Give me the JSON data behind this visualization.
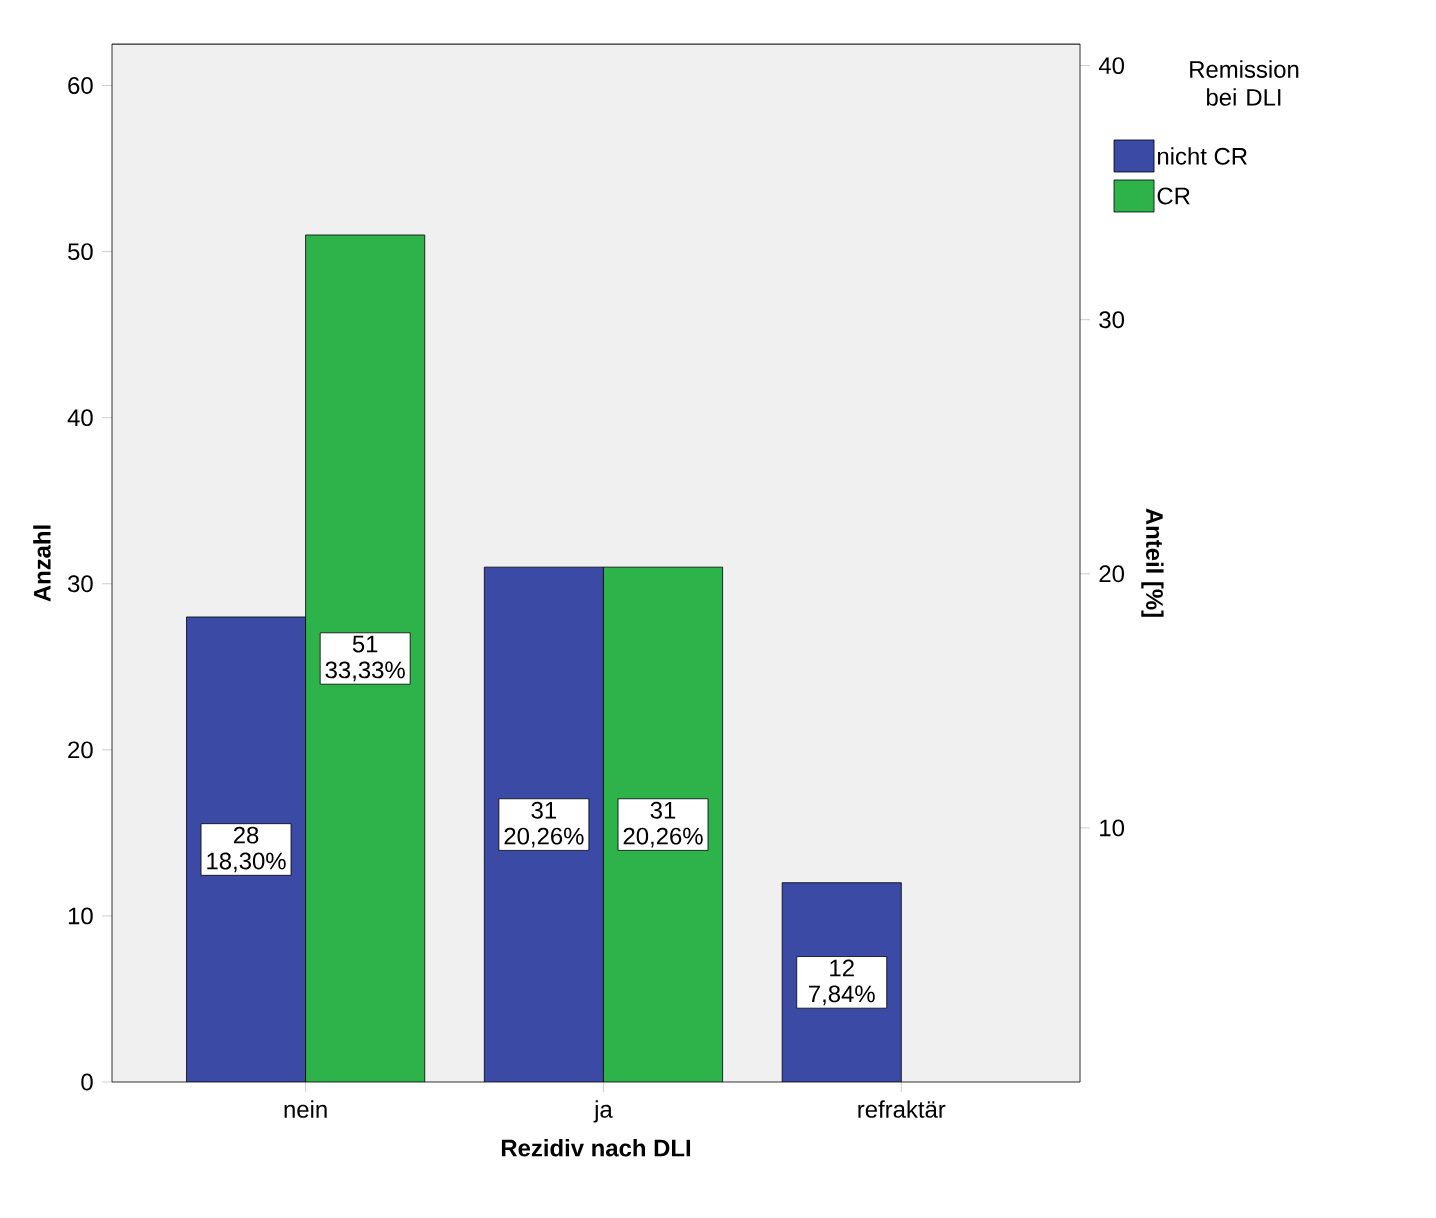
{
  "chart_data": {
    "type": "bar",
    "xlabel": "Rezidiv nach DLI",
    "ylabel": "Anzahl",
    "y2label": "Anteil [%]",
    "legend_title": "Remission bei DLI",
    "categories": [
      "nein",
      "ja",
      "refraktär"
    ],
    "series": [
      {
        "name": "nicht CR",
        "color": "#3a4aa5",
        "values": [
          28,
          31,
          12
        ],
        "value_labels": [
          "28 18,30%",
          "31 20,26%",
          "12 7,84%"
        ]
      },
      {
        "name": "CR",
        "color": "#2db34a",
        "values": [
          51,
          31,
          null
        ],
        "value_labels": [
          "51 33,33%",
          "31 20,26%",
          null
        ]
      }
    ],
    "ylim": [
      0,
      62.5
    ],
    "yticks": [
      0,
      10,
      20,
      30,
      40,
      50,
      60
    ],
    "y2lim": [
      0,
      40.85
    ],
    "y2ticks": [
      10,
      20,
      30,
      40
    ],
    "legend": "top right",
    "grid": false
  }
}
